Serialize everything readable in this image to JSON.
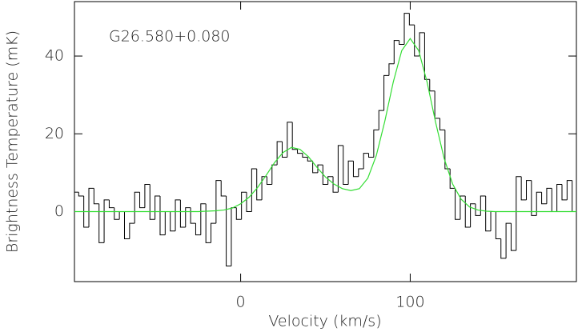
{
  "chart_data": {
    "type": "step",
    "annotation": "G26.580+0.080",
    "xlabel": "Velocity (km/s)",
    "ylabel": "Brightness Temperature (mK)",
    "xlim": [
      -98,
      198
    ],
    "ylim": [
      -18,
      54
    ],
    "xticks": [
      0,
      100
    ],
    "yticks": [
      0,
      20,
      40
    ],
    "series": [
      {
        "color": "#000000",
        "x": [
          -97,
          -94,
          -91,
          -88,
          -85,
          -82,
          -79,
          -76,
          -73,
          -70,
          -67,
          -64,
          -61,
          -58,
          -55,
          -52,
          -49,
          -46,
          -43,
          -40,
          -37,
          -34,
          -31,
          -28,
          -25,
          -22,
          -19,
          -16,
          -13,
          -10,
          -7,
          -4,
          -1,
          2,
          5,
          8,
          11,
          14,
          17,
          20,
          23,
          26,
          29,
          32,
          35,
          38,
          41,
          44,
          47,
          50,
          53,
          56,
          59,
          62,
          65,
          68,
          71,
          74,
          77,
          80,
          83,
          86,
          89,
          92,
          95,
          98,
          101,
          104,
          107,
          110,
          113,
          116,
          119,
          122,
          125,
          128,
          131,
          134,
          137,
          140,
          143,
          146,
          149,
          152,
          155,
          158,
          161,
          164,
          167,
          170,
          173,
          176,
          179,
          182,
          185,
          188,
          191,
          194,
          197
        ],
        "values": [
          5,
          4,
          -4,
          6,
          2,
          -8,
          3,
          1,
          -2,
          0,
          -7,
          -3,
          5,
          1,
          7,
          -2,
          4,
          -6,
          0,
          -5,
          3,
          -4,
          1,
          -3,
          -6,
          2,
          -8,
          -3,
          8,
          4,
          -14,
          1,
          -2,
          5,
          0,
          11,
          3,
          9,
          7,
          12,
          18,
          14,
          23,
          16,
          15,
          14,
          13,
          10,
          12,
          7,
          9,
          5,
          17,
          7,
          13,
          9,
          11,
          15,
          14,
          21,
          26,
          35,
          38,
          44,
          43,
          51,
          48,
          40,
          46,
          34,
          31,
          24,
          21,
          11,
          6,
          -2,
          4,
          -4,
          2,
          -1,
          4,
          -5,
          0,
          -7,
          -12,
          -3,
          -10,
          9,
          3,
          8,
          -1,
          5,
          2,
          6,
          0,
          7,
          3,
          8,
          0
        ]
      },
      {
        "color": "#33dd33",
        "x": [
          -98,
          -90,
          -85,
          -80,
          -75,
          -70,
          -65,
          -60,
          -55,
          -50,
          -45,
          -40,
          -35,
          -30,
          -25,
          -20,
          -15,
          -10,
          -5,
          0,
          5,
          10,
          15,
          20,
          25,
          30,
          35,
          40,
          45,
          50,
          55,
          60,
          65,
          70,
          75,
          80,
          85,
          90,
          95,
          100,
          105,
          110,
          115,
          120,
          125,
          130,
          135,
          140,
          145,
          150,
          155,
          160,
          165,
          170,
          175,
          180,
          185,
          190,
          198
        ],
        "values": [
          0,
          0,
          0,
          0,
          0,
          0,
          0,
          0,
          0,
          0,
          0,
          0,
          0,
          0,
          0,
          0.1,
          0.2,
          0.4,
          0.9,
          2.0,
          3.7,
          6.2,
          9.3,
          12.6,
          15.2,
          16.5,
          16.0,
          14.1,
          11.4,
          8.9,
          7.1,
          5.9,
          5.4,
          5.9,
          8.6,
          14.4,
          23.2,
          33.3,
          41.4,
          44.5,
          41.4,
          33.2,
          22.9,
          13.7,
          7.1,
          3.2,
          1.2,
          0.4,
          0.1,
          0,
          0,
          0,
          0,
          0,
          0,
          0,
          0,
          0,
          0
        ]
      }
    ]
  }
}
